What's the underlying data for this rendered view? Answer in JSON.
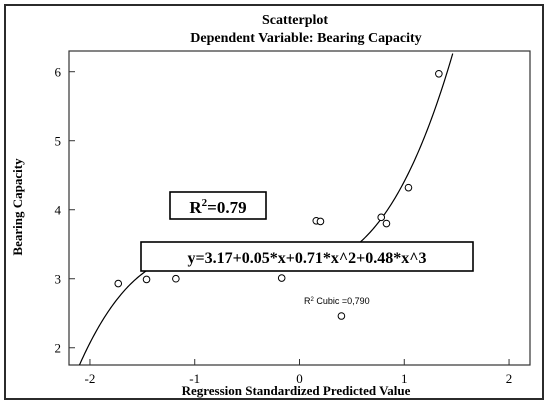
{
  "chart_data": {
    "type": "scatter",
    "title": "Scatterplot",
    "subtitle": "Dependent Variable: Bearing Capacity",
    "xlabel": "Regression Standardized Predicted Value",
    "ylabel": "Bearing Capacity",
    "xlim": [
      -2.2,
      2.2
    ],
    "ylim": [
      1.75,
      6.3
    ],
    "xticks": [
      -2,
      -1,
      0,
      1,
      2
    ],
    "yticks": [
      2,
      3,
      4,
      5,
      6
    ],
    "points": [
      {
        "x": -1.73,
        "y": 2.93
      },
      {
        "x": -1.46,
        "y": 2.99
      },
      {
        "x": -1.18,
        "y": 3.0
      },
      {
        "x": -0.17,
        "y": 3.01
      },
      {
        "x": 0.16,
        "y": 3.84
      },
      {
        "x": 0.2,
        "y": 3.83
      },
      {
        "x": 0.4,
        "y": 2.46
      },
      {
        "x": 0.78,
        "y": 3.89
      },
      {
        "x": 0.83,
        "y": 3.8
      },
      {
        "x": 1.04,
        "y": 4.32
      },
      {
        "x": 1.33,
        "y": 5.97
      }
    ],
    "fit": {
      "type": "cubic",
      "coefficients": [
        3.17,
        0.05,
        0.71,
        0.48
      ],
      "range": [
        -2.2,
        1.55
      ]
    },
    "annotations": {
      "r2_box": {
        "prefix": "R",
        "superscript": "2",
        "suffix": "=0.79"
      },
      "equation": "y=3.17+0.05*x+0.71*x^2+0.48*x^3",
      "cubic_label": {
        "prefix": "R",
        "superscript": "2",
        "suffix": " Cubic =0,790"
      }
    },
    "grid": false
  }
}
